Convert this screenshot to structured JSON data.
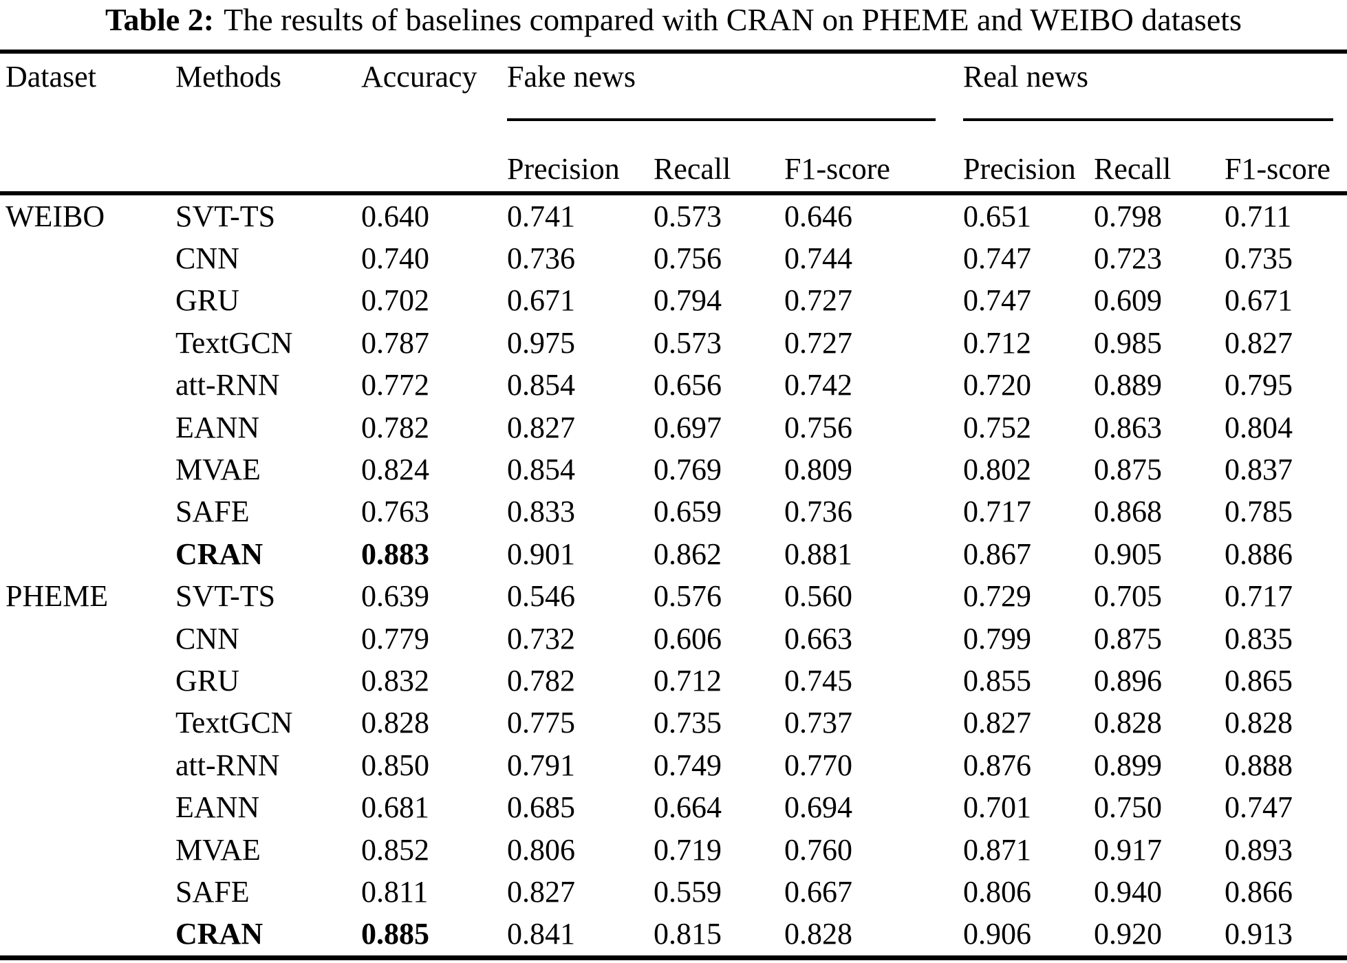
{
  "title": {
    "label": "Table 2:",
    "text": "The results of baselines compared with CRAN on PHEME and WEIBO datasets"
  },
  "table": {
    "columns": {
      "dataset": "Dataset",
      "methods": "Methods",
      "accuracy": "Accuracy"
    },
    "groups": [
      {
        "label": "Fake news",
        "subcolumns": [
          "Precision",
          "Recall",
          "F1-score"
        ]
      },
      {
        "label": "Real news",
        "subcolumns": [
          "Precision",
          "Recall",
          "F1-score"
        ]
      }
    ]
  },
  "chart_data": {
    "type": "table",
    "title": "Table 2: The results of baselines compared with CRAN on PHEME and WEIBO datasets",
    "column_headers": [
      "Dataset",
      "Methods",
      "Accuracy",
      "Fake news Precision",
      "Fake news Recall",
      "Fake news F1-score",
      "Real news Precision",
      "Real news Recall",
      "Real news F1-score"
    ],
    "rows": [
      {
        "dataset": "WEIBO",
        "method": "SVT-TS",
        "accuracy": "0.640",
        "fake": [
          "0.741",
          "0.573",
          "0.646"
        ],
        "real": [
          "0.651",
          "0.798",
          "0.711"
        ],
        "highlight": false
      },
      {
        "dataset": "",
        "method": "CNN",
        "accuracy": "0.740",
        "fake": [
          "0.736",
          "0.756",
          "0.744"
        ],
        "real": [
          "0.747",
          "0.723",
          "0.735"
        ],
        "highlight": false
      },
      {
        "dataset": "",
        "method": "GRU",
        "accuracy": "0.702",
        "fake": [
          "0.671",
          "0.794",
          "0.727"
        ],
        "real": [
          "0.747",
          "0.609",
          "0.671"
        ],
        "highlight": false
      },
      {
        "dataset": "",
        "method": "TextGCN",
        "accuracy": "0.787",
        "fake": [
          "0.975",
          "0.573",
          "0.727"
        ],
        "real": [
          "0.712",
          "0.985",
          "0.827"
        ],
        "highlight": false
      },
      {
        "dataset": "",
        "method": "att-RNN",
        "accuracy": "0.772",
        "fake": [
          "0.854",
          "0.656",
          "0.742"
        ],
        "real": [
          "0.720",
          "0.889",
          "0.795"
        ],
        "highlight": false
      },
      {
        "dataset": "",
        "method": "EANN",
        "accuracy": "0.782",
        "fake": [
          "0.827",
          "0.697",
          "0.756"
        ],
        "real": [
          "0.752",
          "0.863",
          "0.804"
        ],
        "highlight": false
      },
      {
        "dataset": "",
        "method": "MVAE",
        "accuracy": "0.824",
        "fake": [
          "0.854",
          "0.769",
          "0.809"
        ],
        "real": [
          "0.802",
          "0.875",
          "0.837"
        ],
        "highlight": false
      },
      {
        "dataset": "",
        "method": "SAFE",
        "accuracy": "0.763",
        "fake": [
          "0.833",
          "0.659",
          "0.736"
        ],
        "real": [
          "0.717",
          "0.868",
          "0.785"
        ],
        "highlight": false
      },
      {
        "dataset": "",
        "method": "CRAN",
        "accuracy": "0.883",
        "fake": [
          "0.901",
          "0.862",
          "0.881"
        ],
        "real": [
          "0.867",
          "0.905",
          "0.886"
        ],
        "highlight": true
      },
      {
        "dataset": "PHEME",
        "method": "SVT-TS",
        "accuracy": "0.639",
        "fake": [
          "0.546",
          "0.576",
          "0.560"
        ],
        "real": [
          "0.729",
          "0.705",
          "0.717"
        ],
        "highlight": false
      },
      {
        "dataset": "",
        "method": "CNN",
        "accuracy": "0.779",
        "fake": [
          "0.732",
          "0.606",
          "0.663"
        ],
        "real": [
          "0.799",
          "0.875",
          "0.835"
        ],
        "highlight": false
      },
      {
        "dataset": "",
        "method": "GRU",
        "accuracy": "0.832",
        "fake": [
          "0.782",
          "0.712",
          "0.745"
        ],
        "real": [
          "0.855",
          "0.896",
          "0.865"
        ],
        "highlight": false
      },
      {
        "dataset": "",
        "method": "TextGCN",
        "accuracy": "0.828",
        "fake": [
          "0.775",
          "0.735",
          "0.737"
        ],
        "real": [
          "0.827",
          "0.828",
          "0.828"
        ],
        "highlight": false
      },
      {
        "dataset": "",
        "method": "att-RNN",
        "accuracy": "0.850",
        "fake": [
          "0.791",
          "0.749",
          "0.770"
        ],
        "real": [
          "0.876",
          "0.899",
          "0.888"
        ],
        "highlight": false
      },
      {
        "dataset": "",
        "method": "EANN",
        "accuracy": "0.681",
        "fake": [
          "0.685",
          "0.664",
          "0.694"
        ],
        "real": [
          "0.701",
          "0.750",
          "0.747"
        ],
        "highlight": false
      },
      {
        "dataset": "",
        "method": "MVAE",
        "accuracy": "0.852",
        "fake": [
          "0.806",
          "0.719",
          "0.760"
        ],
        "real": [
          "0.871",
          "0.917",
          "0.893"
        ],
        "highlight": false
      },
      {
        "dataset": "",
        "method": "SAFE",
        "accuracy": "0.811",
        "fake": [
          "0.827",
          "0.559",
          "0.667"
        ],
        "real": [
          "0.806",
          "0.940",
          "0.866"
        ],
        "highlight": false
      },
      {
        "dataset": "",
        "method": "CRAN",
        "accuracy": "0.885",
        "fake": [
          "0.841",
          "0.815",
          "0.828"
        ],
        "real": [
          "0.906",
          "0.920",
          "0.913"
        ],
        "highlight": true
      }
    ]
  }
}
